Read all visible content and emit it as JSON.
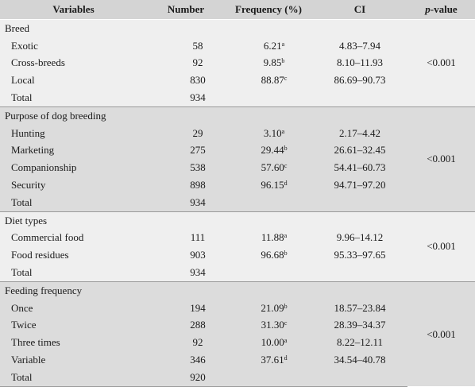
{
  "headers": {
    "variables": "Variables",
    "number": "Number",
    "frequency": "Frequency (%)",
    "ci": "CI",
    "pvalue_italic": "p",
    "pvalue_rest": "-value"
  },
  "groups": [
    {
      "title": "Breed",
      "pvalue": "<0.001",
      "rows": [
        {
          "label": "Exotic",
          "number": "58",
          "freq": "6.21",
          "sup": "a",
          "ci": "4.83–7.94"
        },
        {
          "label": "Cross-breeds",
          "number": "92",
          "freq": "9.85",
          "sup": "b",
          "ci": "8.10–11.93"
        },
        {
          "label": "Local",
          "number": "830",
          "freq": "88.87",
          "sup": "c",
          "ci": "86.69–90.73"
        }
      ],
      "total_label": "Total",
      "total": "934"
    },
    {
      "title": "Purpose of dog breeding",
      "pvalue": "<0.001",
      "rows": [
        {
          "label": "Hunting",
          "number": "29",
          "freq": "3.10",
          "sup": "a",
          "ci": "2.17–4.42"
        },
        {
          "label": "Marketing",
          "number": "275",
          "freq": "29.44",
          "sup": "b",
          "ci": "26.61–32.45"
        },
        {
          "label": "Companionship",
          "number": "538",
          "freq": "57.60",
          "sup": "c",
          "ci": "54.41–60.73"
        },
        {
          "label": "Security",
          "number": "898",
          "freq": "96.15",
          "sup": "d",
          "ci": "94.71–97.20"
        }
      ],
      "total_label": "Total",
      "total": "934"
    },
    {
      "title": "Diet types",
      "pvalue": "<0.001",
      "rows": [
        {
          "label": "Commercial food",
          "number": "111",
          "freq": "11.88",
          "sup": "a",
          "ci": "9.96–14.12"
        },
        {
          "label": "Food residues",
          "number": "903",
          "freq": "96.68",
          "sup": "b",
          "ci": "95.33–97.65"
        }
      ],
      "total_label": "Total",
      "total": "934"
    },
    {
      "title": "Feeding frequency",
      "pvalue": "<0.001",
      "rows": [
        {
          "label": "Once",
          "number": "194",
          "freq": "21.09",
          "sup": "b",
          "ci": "18.57–23.84"
        },
        {
          "label": "Twice",
          "number": "288",
          "freq": "31.30",
          "sup": "c",
          "ci": "28.39–34.37"
        },
        {
          "label": "Three times",
          "number": "92",
          "freq": "10.00",
          "sup": "a",
          "ci": "8.22–12.11"
        },
        {
          "label": "Variable",
          "number": "346",
          "freq": "37.61",
          "sup": "d",
          "ci": "34.54–40.78"
        }
      ],
      "total_label": "Total",
      "total": "920"
    }
  ],
  "colors": {
    "header_bg": "#d4d4d4",
    "light_group_bg": "#efefef",
    "dark_group_bg": "#dcdcdc"
  }
}
